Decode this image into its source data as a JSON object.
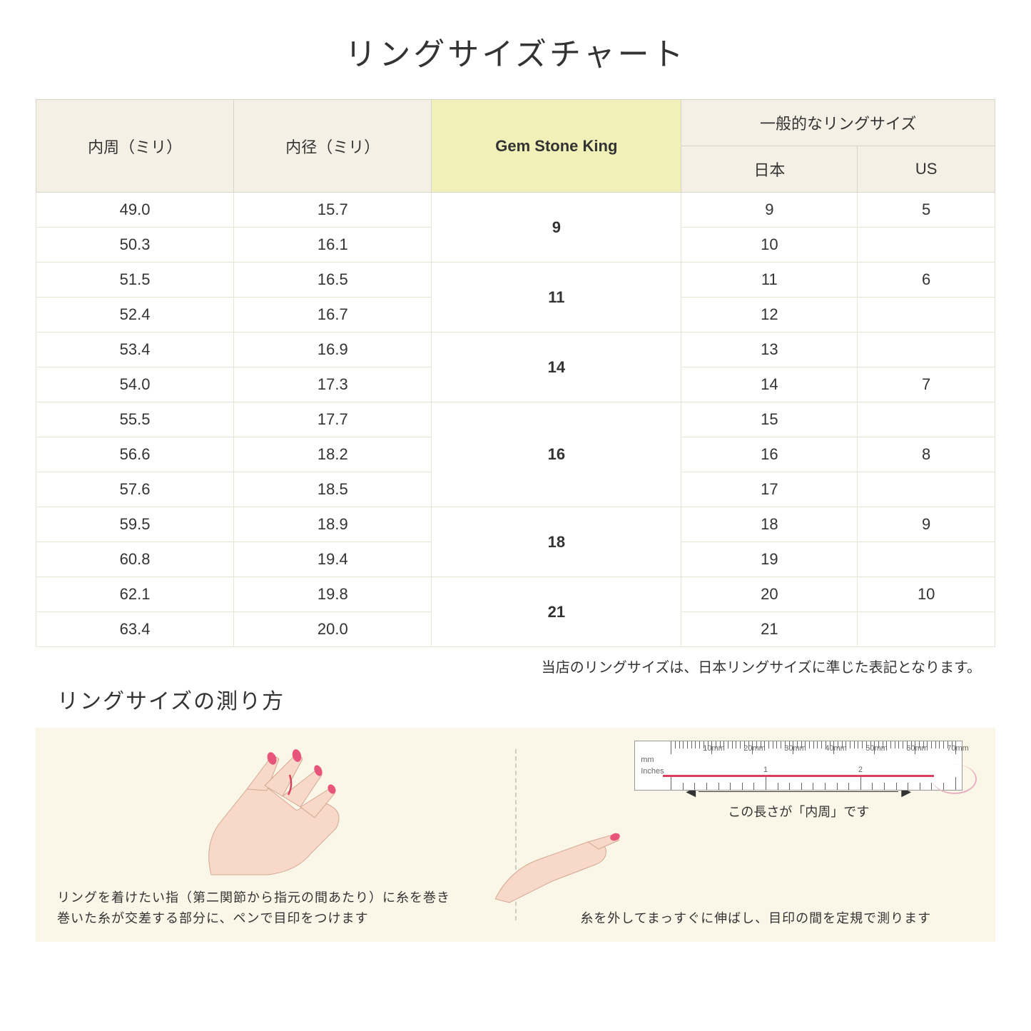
{
  "title": "リングサイズチャート",
  "headers": {
    "circumference": "内周（ミリ）",
    "diameter": "内径（ミリ）",
    "gsk": "Gem Stone King",
    "general": "一般的なリングサイズ",
    "japan": "日本",
    "us": "US"
  },
  "groups": [
    {
      "gsk": "9",
      "rows": [
        {
          "c": "49.0",
          "d": "15.7",
          "jp": "9",
          "us": "5"
        },
        {
          "c": "50.3",
          "d": "16.1",
          "jp": "10",
          "us": ""
        }
      ]
    },
    {
      "gsk": "11",
      "rows": [
        {
          "c": "51.5",
          "d": "16.5",
          "jp": "11",
          "us": "6"
        },
        {
          "c": "52.4",
          "d": "16.7",
          "jp": "12",
          "us": ""
        }
      ]
    },
    {
      "gsk": "14",
      "rows": [
        {
          "c": "53.4",
          "d": "16.9",
          "jp": "13",
          "us": ""
        },
        {
          "c": "54.0",
          "d": "17.3",
          "jp": "14",
          "us": "7"
        }
      ]
    },
    {
      "gsk": "16",
      "rows": [
        {
          "c": "55.5",
          "d": "17.7",
          "jp": "15",
          "us": ""
        },
        {
          "c": "56.6",
          "d": "18.2",
          "jp": "16",
          "us": "8"
        },
        {
          "c": "57.6",
          "d": "18.5",
          "jp": "17",
          "us": ""
        }
      ]
    },
    {
      "gsk": "18",
      "rows": [
        {
          "c": "59.5",
          "d": "18.9",
          "jp": "18",
          "us": "9"
        },
        {
          "c": "60.8",
          "d": "19.4",
          "jp": "19",
          "us": ""
        }
      ]
    },
    {
      "gsk": "21",
      "rows": [
        {
          "c": "62.1",
          "d": "19.8",
          "jp": "20",
          "us": "10"
        },
        {
          "c": "63.4",
          "d": "20.0",
          "jp": "21",
          "us": ""
        }
      ]
    }
  ],
  "note": "当店のリングサイズは、日本リングサイズに準じた表記となります。",
  "howto_title": "リングサイズの測り方",
  "panel1_text": "リングを着けたい指（第二関節から指元の間あたり）に糸を巻き\n巻いた糸が交差する部分に、ペンで目印をつけます",
  "panel2_label": "この長さが「内周」です",
  "panel2_text": "糸を外してまっすぐに伸ばし、目印の間を定規で測ります",
  "ruler_mm_labels": [
    "10mm",
    "20mm",
    "30mm",
    "40mm",
    "50mm",
    "60mm",
    "70mm"
  ],
  "ruler_units": {
    "mm": "mm",
    "inches": "Inches",
    "inch_marks": [
      "1",
      "2"
    ]
  },
  "colors": {
    "header_bg": "#f5f0e5",
    "gsk_bg": "#f0f0b8",
    "instruction_bg": "#faf7e8",
    "skin": "#f8d8c8",
    "nail": "#e8557a",
    "thread": "#d94060"
  }
}
